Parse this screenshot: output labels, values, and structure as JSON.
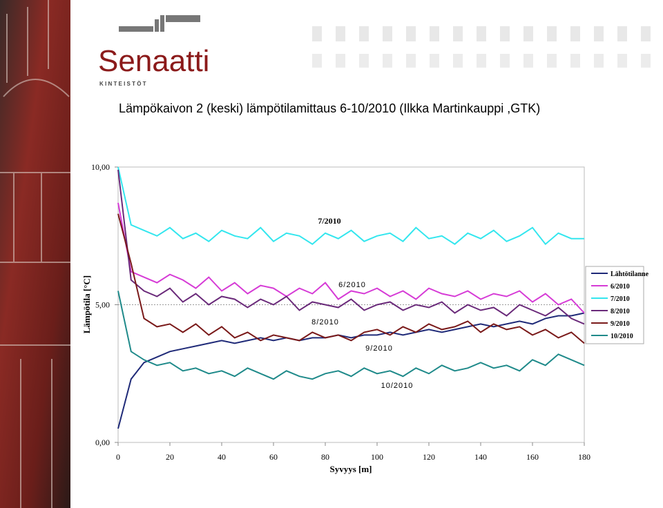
{
  "logo": {
    "name": "Senaatti",
    "sub": "K I N T E I S T Ö T"
  },
  "chart_data": {
    "type": "line",
    "title": "Lämpökaivon 2 (keski) lämpötilamittaus 6-10/2010 (Ilkka Martinkauppi ,GTK)",
    "x_label": "Syvyys [m]",
    "y_label": "Lämpötila [°C]",
    "x": [
      0,
      5,
      10,
      15,
      20,
      25,
      30,
      35,
      40,
      45,
      50,
      55,
      60,
      65,
      70,
      75,
      80,
      85,
      90,
      95,
      100,
      105,
      110,
      115,
      120,
      125,
      130,
      135,
      140,
      145,
      150,
      155,
      160,
      165,
      170,
      175,
      180
    ],
    "xlim": [
      0,
      180
    ],
    "xticks": [
      0,
      20,
      40,
      60,
      80,
      100,
      120,
      140,
      160,
      180
    ],
    "ylim": [
      0,
      10
    ],
    "yticks": [
      {
        "value": 0,
        "label": "0,00"
      },
      {
        "value": 5,
        "label": "5,00"
      },
      {
        "value": 10,
        "label": "10,00"
      }
    ],
    "grid": true,
    "legend": "right",
    "series": [
      {
        "name": "Lähtötilanne",
        "color": "#1f2a78",
        "values": [
          0.5,
          2.3,
          2.9,
          3.1,
          3.3,
          3.4,
          3.5,
          3.6,
          3.7,
          3.6,
          3.7,
          3.8,
          3.7,
          3.8,
          3.7,
          3.8,
          3.8,
          3.9,
          3.8,
          3.9,
          3.9,
          4.0,
          3.9,
          4.0,
          4.1,
          4.0,
          4.1,
          4.2,
          4.3,
          4.2,
          4.3,
          4.4,
          4.3,
          4.5,
          4.6,
          4.6,
          4.7
        ]
      },
      {
        "name": "6/2010",
        "color": "#d63bd6",
        "values": [
          8.7,
          6.2,
          6.0,
          5.8,
          6.1,
          5.9,
          5.6,
          6.0,
          5.5,
          5.8,
          5.4,
          5.7,
          5.6,
          5.3,
          5.6,
          5.4,
          5.8,
          5.2,
          5.5,
          5.4,
          5.6,
          5.3,
          5.5,
          5.2,
          5.6,
          5.4,
          5.3,
          5.5,
          5.2,
          5.4,
          5.3,
          5.5,
          5.1,
          5.4,
          5.0,
          5.2,
          4.7
        ]
      },
      {
        "name": "7/2010",
        "color": "#33e6ee",
        "values": [
          10.0,
          7.9,
          7.7,
          7.5,
          7.8,
          7.4,
          7.6,
          7.3,
          7.7,
          7.5,
          7.4,
          7.8,
          7.3,
          7.6,
          7.5,
          7.2,
          7.6,
          7.4,
          7.7,
          7.3,
          7.5,
          7.6,
          7.3,
          7.8,
          7.4,
          7.5,
          7.2,
          7.6,
          7.4,
          7.7,
          7.3,
          7.5,
          7.8,
          7.2,
          7.6,
          7.4,
          7.4
        ]
      },
      {
        "name": "8/2010",
        "color": "#6a2a7a",
        "values": [
          9.9,
          5.9,
          5.5,
          5.3,
          5.6,
          5.1,
          5.4,
          5.0,
          5.3,
          5.2,
          4.9,
          5.2,
          5.0,
          5.3,
          4.8,
          5.1,
          5.0,
          4.9,
          5.2,
          4.8,
          5.0,
          5.1,
          4.8,
          5.0,
          4.9,
          5.1,
          4.7,
          5.0,
          4.8,
          4.9,
          4.6,
          5.0,
          4.8,
          4.6,
          4.9,
          4.5,
          4.3
        ]
      },
      {
        "name": "9/2010",
        "color": "#7a1a1a",
        "values": [
          8.3,
          6.5,
          4.5,
          4.2,
          4.3,
          4.0,
          4.3,
          3.9,
          4.2,
          3.8,
          4.0,
          3.7,
          3.9,
          3.8,
          3.7,
          4.0,
          3.8,
          3.9,
          3.7,
          4.0,
          4.1,
          3.9,
          4.2,
          4.0,
          4.3,
          4.1,
          4.2,
          4.4,
          4.0,
          4.3,
          4.1,
          4.2,
          3.9,
          4.1,
          3.8,
          4.0,
          3.6
        ]
      },
      {
        "name": "10/2010",
        "color": "#1f8a8a",
        "values": [
          5.5,
          3.3,
          3.0,
          2.8,
          2.9,
          2.6,
          2.7,
          2.5,
          2.6,
          2.4,
          2.7,
          2.5,
          2.3,
          2.6,
          2.4,
          2.3,
          2.5,
          2.6,
          2.4,
          2.7,
          2.5,
          2.6,
          2.4,
          2.7,
          2.5,
          2.8,
          2.6,
          2.7,
          2.9,
          2.7,
          2.8,
          2.6,
          3.0,
          2.8,
          3.2,
          3.0,
          2.8
        ]
      }
    ],
    "annotations": [
      "7/2010",
      "6/2010",
      "8/2010",
      "9/2010",
      "10/2010"
    ]
  }
}
